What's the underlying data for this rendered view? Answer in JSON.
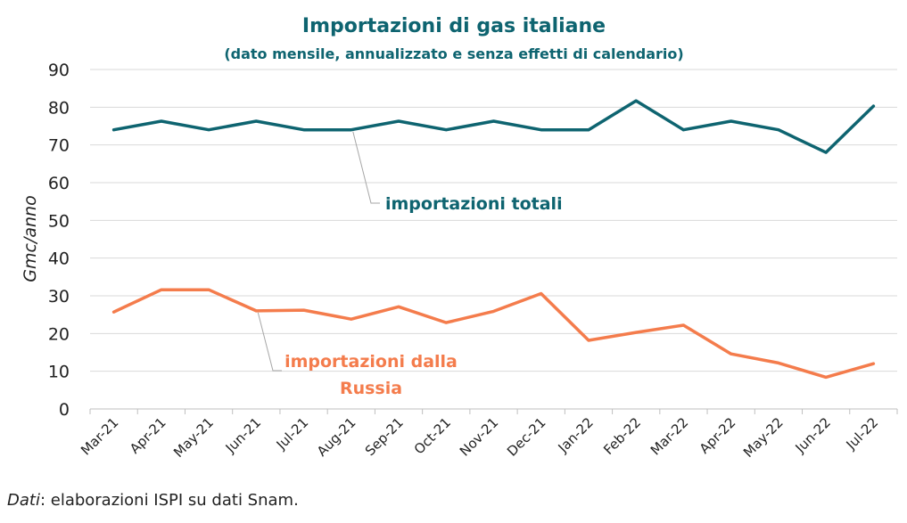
{
  "chart_data": {
    "type": "line",
    "title": "Importazioni di gas italiane",
    "subtitle": "(dato mensile, annualizzato e senza effetti di calendario)",
    "ylabel": "Gmc/anno",
    "ylim": [
      0,
      90
    ],
    "yticks": [
      0,
      10,
      20,
      30,
      40,
      50,
      60,
      70,
      80,
      90
    ],
    "grid": true,
    "categories": [
      "Mar-21",
      "Apr-21",
      "May-21",
      "Jun-21",
      "Jul-21",
      "Aug-21",
      "Sep-21",
      "Oct-21",
      "Nov-21",
      "Dec-21",
      "Jan-22",
      "Feb-22",
      "Mar-22",
      "Apr-22",
      "May-22",
      "Jun-22",
      "Jul-22"
    ],
    "series": [
      {
        "name": "importazioni totali",
        "color": "#0e6470",
        "values": [
          74,
          76.3,
          74,
          76.3,
          74,
          74,
          76.3,
          74,
          76.3,
          74,
          74,
          81.7,
          74,
          76.3,
          74,
          68,
          80.3
        ]
      },
      {
        "name": "importazioni dalla Russia",
        "label_lines": [
          "importazioni dalla",
          "Russia"
        ],
        "color": "#f47c4c",
        "values": [
          25.7,
          31.6,
          31.6,
          26,
          26.2,
          23.8,
          27.1,
          22.9,
          25.9,
          30.6,
          18.2,
          20.3,
          22.2,
          14.6,
          12.2,
          8.4,
          12
        ]
      }
    ]
  },
  "source": {
    "prefix": "Dati",
    "text": ": elaborazioni ISPI su dati Snam."
  }
}
